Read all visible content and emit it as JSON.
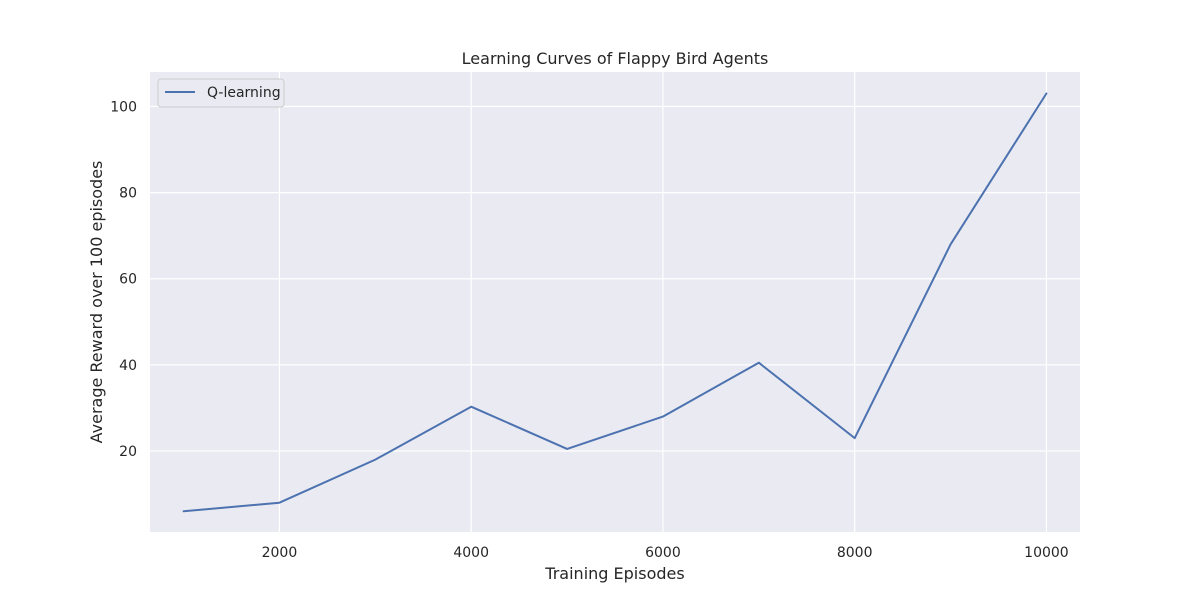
{
  "chart_data": {
    "type": "line",
    "title": "Learning Curves of Flappy Bird Agents",
    "xlabel": "Training Episodes",
    "ylabel": "Average Reward over 100 episodes",
    "xlim": [
      650,
      10350
    ],
    "ylim": [
      1.2,
      108
    ],
    "xticks": [
      2000,
      4000,
      6000,
      8000,
      10000
    ],
    "yticks": [
      20,
      40,
      60,
      80,
      100
    ],
    "grid": true,
    "legend_position": "top-left",
    "background_color": "#eaeaf2",
    "series": [
      {
        "name": "Q-learning",
        "color": "#4c72b0",
        "x": [
          1000,
          2000,
          3000,
          4000,
          5000,
          6000,
          7000,
          8000,
          9000,
          10000
        ],
        "y": [
          6.0,
          8.0,
          18.0,
          30.3,
          20.5,
          28.0,
          40.5,
          23.0,
          68.0,
          103.0
        ]
      }
    ]
  }
}
